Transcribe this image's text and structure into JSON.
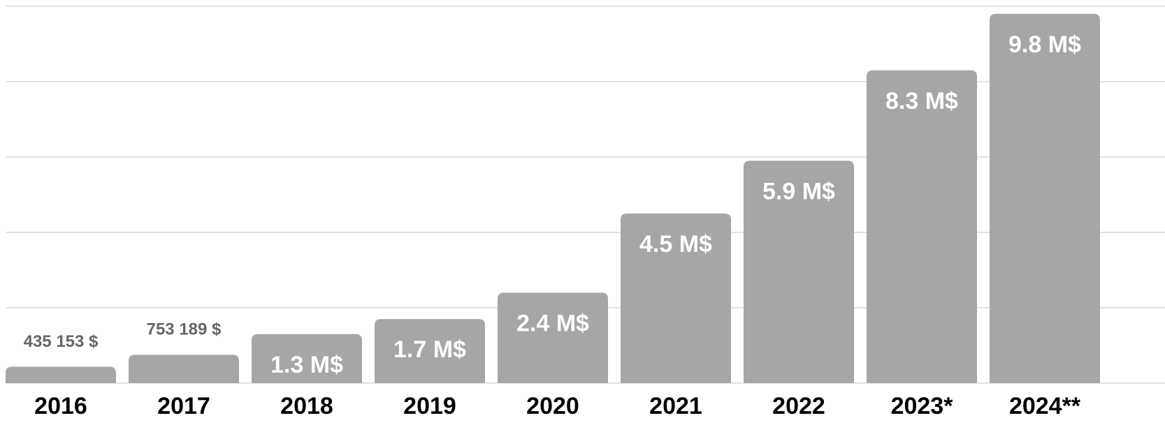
{
  "chart_data": {
    "type": "bar",
    "categories": [
      "2016",
      "2017",
      "2018",
      "2019",
      "2020",
      "2021",
      "2022",
      "2023*",
      "2024**"
    ],
    "values": [
      435153,
      753189,
      1300000,
      1700000,
      2400000,
      4500000,
      5900000,
      8300000,
      9800000
    ],
    "value_labels": [
      "435 153 $",
      "753 189 $",
      "1.3 M$",
      "1.7 M$",
      "2.4 M$",
      "4.5 M$",
      "5.9 M$",
      "8.3 M$",
      "9.8 M$"
    ],
    "color": "#a6a6a6",
    "ylim": [
      0,
      10000000
    ],
    "yticks": [
      0,
      2000000,
      4000000,
      6000000,
      8000000,
      10000000
    ],
    "grid": true
  }
}
